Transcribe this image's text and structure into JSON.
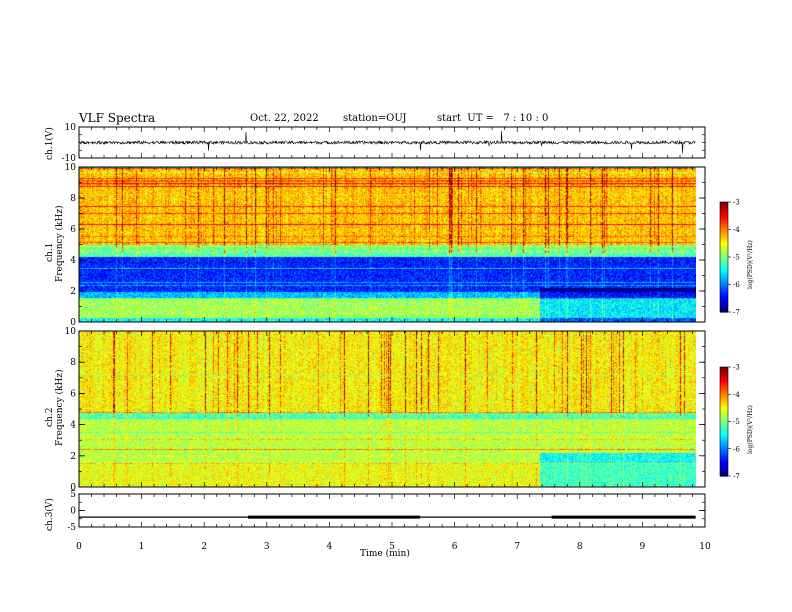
{
  "header": {
    "title": "VLF Spectra",
    "date": "Oct. 22, 2022",
    "station": "station=OUJ",
    "start_ut": "start  UT =   7 : 10 : 0"
  },
  "panels": {
    "ch1v": {
      "ylabel": "ch.1(V)",
      "yticks": [
        "10",
        "-10"
      ]
    },
    "ch1": {
      "ylabel_line1": "ch.1",
      "ylabel_line2": "Frequency  (kHz)",
      "yticks": [
        "10",
        "8",
        "6",
        "4",
        "2",
        "0"
      ]
    },
    "ch2": {
      "ylabel_line1": "ch.2",
      "ylabel_line2": "Frequency  (kHz)",
      "yticks": [
        "10",
        "8",
        "6",
        "4",
        "2",
        "0"
      ]
    },
    "ch3v": {
      "ylabel": "ch.3(V)",
      "yticks": [
        "5",
        "0",
        "-5"
      ]
    }
  },
  "colorbar": {
    "label": "log(PSD)(V²/Hz)",
    "ticks": [
      "-3",
      "-4",
      "-5",
      "-6",
      "-7"
    ],
    "range": [
      -7,
      -3
    ]
  },
  "xaxis": {
    "label": "Time  (min)",
    "ticks": [
      "0",
      "1",
      "2",
      "3",
      "4",
      "5",
      "6",
      "7",
      "8",
      "9",
      "10"
    ],
    "range": [
      0,
      10
    ]
  },
  "chart_data": [
    {
      "type": "line",
      "title": "ch.1(V)",
      "ylim": [
        -10,
        10
      ],
      "xlim": [
        0,
        10
      ],
      "baseline_level": 0,
      "noise_band": [
        -1,
        1
      ]
    },
    {
      "type": "heatmap",
      "title": "ch.1 spectrogram",
      "xlim": [
        0,
        9.85
      ],
      "ylim": [
        0,
        10
      ],
      "zlim": [
        -7,
        -3
      ],
      "bands": [
        {
          "f_range": [
            5.0,
            10.0
          ],
          "log_psd": -4.4
        },
        {
          "f_range": [
            4.2,
            5.0
          ],
          "log_psd": -5.2
        },
        {
          "f_range": [
            2.0,
            4.2
          ],
          "log_psd": -6.4
        },
        {
          "f_range": [
            1.6,
            2.0
          ],
          "log_psd": -5.8
        },
        {
          "f_range": [
            0.3,
            1.6
          ],
          "log_psd": -4.9
        },
        {
          "f_range": [
            0.0,
            0.3
          ],
          "log_psd": -5.5
        }
      ],
      "change_time_min": 7.35
    },
    {
      "type": "heatmap",
      "title": "ch.2 spectrogram",
      "xlim": [
        0,
        9.85
      ],
      "ylim": [
        0,
        10
      ],
      "zlim": [
        -7,
        -3
      ],
      "bands": [
        {
          "f_range": [
            4.8,
            10.0
          ],
          "log_psd": -4.6
        },
        {
          "f_range": [
            4.4,
            4.8
          ],
          "log_psd": -5.3
        },
        {
          "f_range": [
            1.5,
            4.4
          ],
          "log_psd": -4.8
        },
        {
          "f_range": [
            0.0,
            1.5
          ],
          "log_psd": -4.6
        }
      ],
      "change_time_min": 7.35
    },
    {
      "type": "line",
      "title": "ch.3(V)",
      "ylim": [
        -5,
        5
      ],
      "xlim": [
        0,
        10
      ],
      "level": -2,
      "thick_segments": [
        [
          2.7,
          5.45
        ],
        [
          7.55,
          9.85
        ]
      ]
    }
  ]
}
